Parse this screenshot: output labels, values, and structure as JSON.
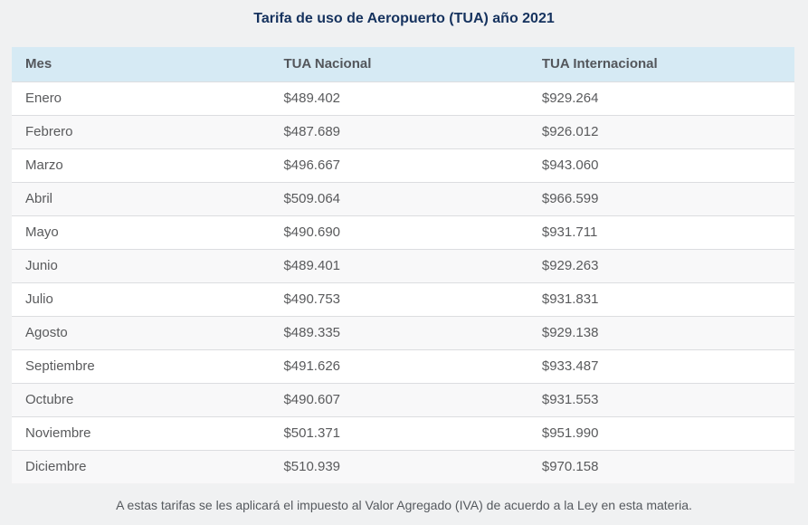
{
  "page": {
    "title": "Tarifa de uso de Aeropuerto (TUA) año 2021",
    "footnote": "A estas tarifas se les aplicará el impuesto al Valor Agregado (IVA) de acuerdo a la Ley en esta materia."
  },
  "colors": {
    "page_bg": "#f0f1f2",
    "title_text": "#15325e",
    "header_bg": "#d6eaf4",
    "header_text": "#53565b",
    "row_bg": "#ffffff",
    "row_alt_bg": "#f8f8f9",
    "row_border": "#dcdde0",
    "cell_text": "#595a5c"
  },
  "table": {
    "headers": [
      "Mes",
      "TUA Nacional",
      "TUA Internacional"
    ],
    "rows": [
      {
        "mes": "Enero",
        "nacional": "$489.402",
        "internacional": "$929.264"
      },
      {
        "mes": "Febrero",
        "nacional": "$487.689",
        "internacional": "$926.012"
      },
      {
        "mes": "Marzo",
        "nacional": "$496.667",
        "internacional": "$943.060"
      },
      {
        "mes": "Abril",
        "nacional": "$509.064",
        "internacional": "$966.599"
      },
      {
        "mes": "Mayo",
        "nacional": "$490.690",
        "internacional": "$931.711"
      },
      {
        "mes": "Junio",
        "nacional": "$489.401",
        "internacional": "$929.263"
      },
      {
        "mes": "Julio",
        "nacional": "$490.753",
        "internacional": "$931.831"
      },
      {
        "mes": "Agosto",
        "nacional": "$489.335",
        "internacional": "$929.138"
      },
      {
        "mes": "Septiembre",
        "nacional": "$491.626",
        "internacional": "$933.487"
      },
      {
        "mes": "Octubre",
        "nacional": "$490.607",
        "internacional": "$931.553"
      },
      {
        "mes": "Noviembre",
        "nacional": "$501.371",
        "internacional": "$951.990"
      },
      {
        "mes": "Diciembre",
        "nacional": "$510.939",
        "internacional": "$970.158"
      }
    ]
  },
  "chart_data": {
    "type": "table",
    "title": "Tarifa de uso de Aeropuerto (TUA) año 2021",
    "columns": [
      "Mes",
      "TUA Nacional",
      "TUA Internacional"
    ],
    "rows": [
      [
        "Enero",
        "$489.402",
        "$929.264"
      ],
      [
        "Febrero",
        "$487.689",
        "$926.012"
      ],
      [
        "Marzo",
        "$496.667",
        "$943.060"
      ],
      [
        "Abril",
        "$509.064",
        "$966.599"
      ],
      [
        "Mayo",
        "$490.690",
        "$931.711"
      ],
      [
        "Junio",
        "$489.401",
        "$929.263"
      ],
      [
        "Julio",
        "$490.753",
        "$931.831"
      ],
      [
        "Agosto",
        "$489.335",
        "$929.138"
      ],
      [
        "Septiembre",
        "$491.626",
        "$933.487"
      ],
      [
        "Octubre",
        "$490.607",
        "$931.553"
      ],
      [
        "Noviembre",
        "$501.371",
        "$951.990"
      ],
      [
        "Diciembre",
        "$510.939",
        "$970.158"
      ]
    ],
    "footnote": "A estas tarifas se les aplicará el impuesto al Valor Agregado (IVA) de acuerdo a la Ley en esta materia."
  }
}
